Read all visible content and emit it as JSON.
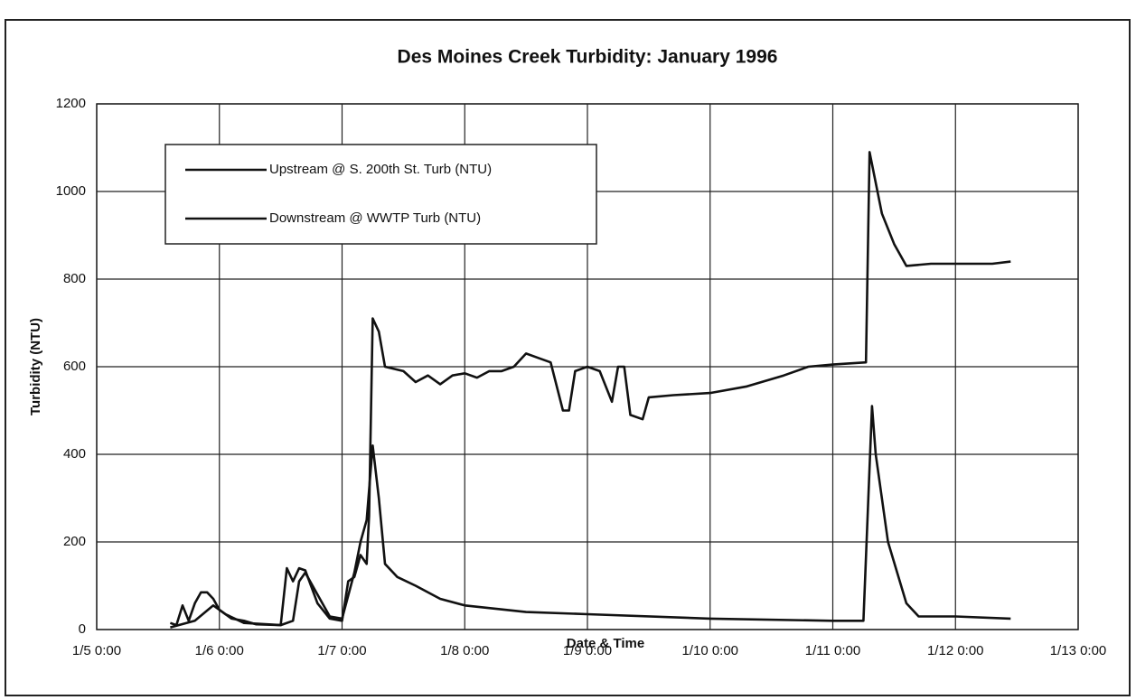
{
  "chart_data": {
    "type": "line",
    "title": "Des Moines Creek Turbidity:  January 1996",
    "x_label": "Date & Time",
    "y_label": "Turbidity (NTU)",
    "xlim": [
      5,
      13
    ],
    "xticks": [
      {
        "value": 5,
        "label": "1/5 0:00"
      },
      {
        "value": 6,
        "label": "1/6 0:00"
      },
      {
        "value": 7,
        "label": "1/7 0:00"
      },
      {
        "value": 8,
        "label": "1/8 0:00"
      },
      {
        "value": 9,
        "label": "1/9 0:00"
      },
      {
        "value": 10,
        "label": "1/10 0:00"
      },
      {
        "value": 11,
        "label": "1/11 0:00"
      },
      {
        "value": 12,
        "label": "1/12 0:00"
      },
      {
        "value": 13,
        "label": "1/13 0:00"
      }
    ],
    "ylim": [
      0,
      1200
    ],
    "yticks": [
      0,
      200,
      400,
      600,
      800,
      1000,
      1200
    ],
    "grid": true,
    "legend": "upper left",
    "series": [
      {
        "name": "Upstream @ S. 200th St. Turb (NTU)",
        "color": "#111111",
        "x": [
          5.6,
          5.8,
          5.95,
          6.05,
          6.2,
          6.5,
          6.6,
          6.65,
          6.7,
          6.8,
          6.9,
          7.0,
          7.1,
          7.15,
          7.2,
          7.25,
          7.3,
          7.35,
          7.45,
          7.6,
          7.8,
          8.0,
          8.5,
          9.0,
          10.0,
          11.0,
          11.25,
          11.32,
          11.35,
          11.45,
          11.6,
          11.7,
          12.0,
          12.45
        ],
        "values": [
          5,
          20,
          55,
          35,
          15,
          10,
          20,
          110,
          130,
          80,
          30,
          25,
          130,
          200,
          250,
          420,
          300,
          150,
          120,
          100,
          70,
          55,
          40,
          35,
          25,
          20,
          20,
          510,
          400,
          200,
          60,
          30,
          30,
          25
        ]
      },
      {
        "name": "Downstream @ WWTP Turb (NTU)",
        "color": "#111111",
        "x": [
          5.6,
          5.65,
          5.7,
          5.75,
          5.8,
          5.85,
          5.9,
          5.95,
          6.0,
          6.1,
          6.2,
          6.3,
          6.5,
          6.55,
          6.6,
          6.65,
          6.7,
          6.8,
          6.9,
          7.0,
          7.05,
          7.1,
          7.15,
          7.2,
          7.22,
          7.25,
          7.3,
          7.35,
          7.5,
          7.6,
          7.7,
          7.8,
          7.9,
          8.0,
          8.1,
          8.2,
          8.3,
          8.4,
          8.5,
          8.6,
          8.7,
          8.8,
          8.85,
          8.9,
          9.0,
          9.1,
          9.2,
          9.25,
          9.3,
          9.35,
          9.45,
          9.5,
          9.7,
          10.0,
          10.3,
          10.6,
          10.8,
          11.0,
          11.27,
          11.3,
          11.4,
          11.5,
          11.6,
          11.8,
          12.0,
          12.3,
          12.45
        ],
        "values": [
          15,
          10,
          55,
          20,
          60,
          85,
          85,
          70,
          45,
          25,
          20,
          12,
          10,
          140,
          110,
          140,
          135,
          60,
          25,
          20,
          110,
          120,
          170,
          150,
          260,
          710,
          680,
          600,
          590,
          565,
          580,
          560,
          580,
          585,
          575,
          590,
          590,
          600,
          630,
          620,
          610,
          500,
          500,
          590,
          600,
          590,
          520,
          600,
          600,
          490,
          480,
          530,
          535,
          540,
          555,
          580,
          600,
          605,
          610,
          1090,
          950,
          880,
          830,
          835,
          835,
          835,
          840
        ]
      }
    ]
  }
}
